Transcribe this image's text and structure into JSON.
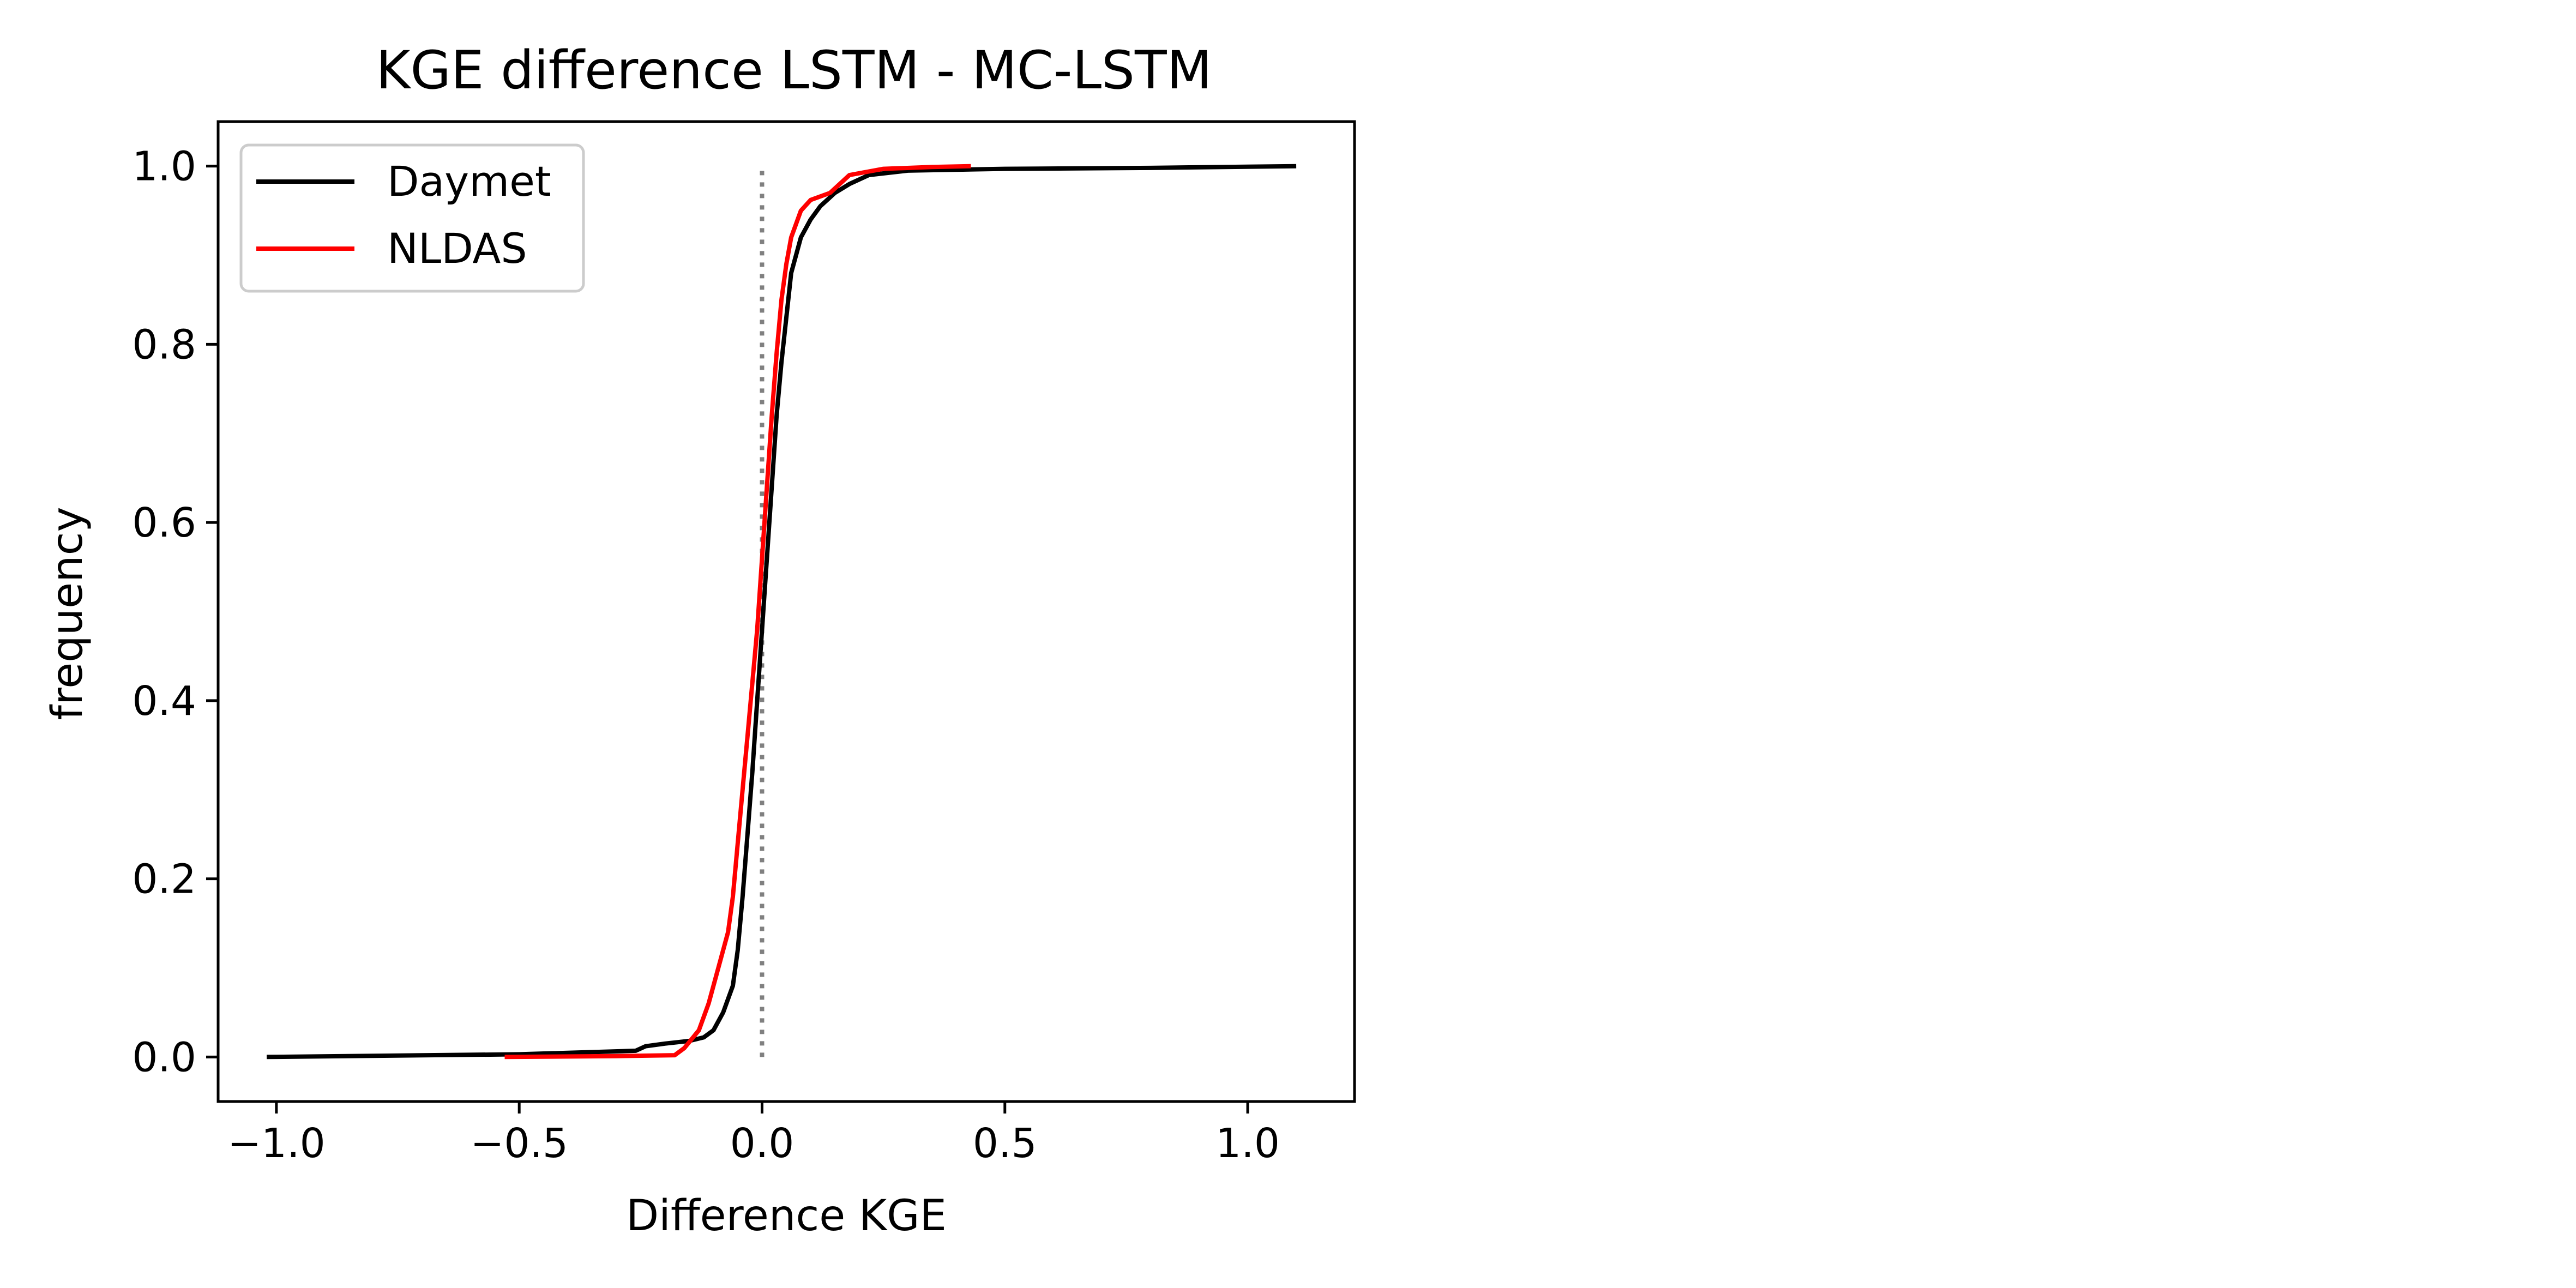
{
  "chart_data": {
    "type": "line",
    "title": "KGE difference LSTM - MC-LSTM",
    "xlabel": "Difference KGE",
    "ylabel": "frequency",
    "xlim": [
      -1.12,
      1.22
    ],
    "ylim": [
      -0.05,
      1.05
    ],
    "x_ticks": [
      -1.0,
      -0.5,
      0.0,
      0.5,
      1.0
    ],
    "x_tick_labels": [
      "−1.0",
      "−0.5",
      "0.0",
      "0.5",
      "1.0"
    ],
    "y_ticks": [
      0.0,
      0.2,
      0.4,
      0.6,
      0.8,
      1.0
    ],
    "y_tick_labels": [
      "0.0",
      "0.2",
      "0.4",
      "0.6",
      "0.8",
      "1.0"
    ],
    "grid": false,
    "legend_position": "top-left",
    "reference_line": {
      "x": 0.0,
      "y_range": [
        0.0,
        1.0
      ],
      "style": "dotted",
      "color": "#808080"
    },
    "series": [
      {
        "name": "Daymet",
        "color": "#000000",
        "points": [
          [
            -1.02,
            0.0
          ],
          [
            -0.5,
            0.003
          ],
          [
            -0.26,
            0.007
          ],
          [
            -0.24,
            0.012
          ],
          [
            -0.2,
            0.015
          ],
          [
            -0.15,
            0.018
          ],
          [
            -0.12,
            0.022
          ],
          [
            -0.1,
            0.03
          ],
          [
            -0.08,
            0.05
          ],
          [
            -0.06,
            0.08
          ],
          [
            -0.05,
            0.12
          ],
          [
            -0.04,
            0.18
          ],
          [
            -0.03,
            0.25
          ],
          [
            -0.02,
            0.32
          ],
          [
            -0.01,
            0.4
          ],
          [
            0.0,
            0.48
          ],
          [
            0.01,
            0.56
          ],
          [
            0.02,
            0.64
          ],
          [
            0.03,
            0.72
          ],
          [
            0.04,
            0.78
          ],
          [
            0.05,
            0.83
          ],
          [
            0.06,
            0.88
          ],
          [
            0.08,
            0.92
          ],
          [
            0.1,
            0.94
          ],
          [
            0.12,
            0.955
          ],
          [
            0.15,
            0.97
          ],
          [
            0.18,
            0.98
          ],
          [
            0.22,
            0.99
          ],
          [
            0.3,
            0.995
          ],
          [
            0.5,
            0.997
          ],
          [
            0.8,
            0.998
          ],
          [
            1.1,
            1.0
          ]
        ]
      },
      {
        "name": "NLDAS",
        "color": "#ff0000",
        "points": [
          [
            -0.53,
            0.0
          ],
          [
            -0.3,
            0.001
          ],
          [
            -0.18,
            0.002
          ],
          [
            -0.16,
            0.01
          ],
          [
            -0.13,
            0.03
          ],
          [
            -0.11,
            0.06
          ],
          [
            -0.09,
            0.1
          ],
          [
            -0.07,
            0.14
          ],
          [
            -0.06,
            0.18
          ],
          [
            -0.05,
            0.24
          ],
          [
            -0.04,
            0.3
          ],
          [
            -0.03,
            0.36
          ],
          [
            -0.02,
            0.42
          ],
          [
            -0.01,
            0.48
          ],
          [
            0.0,
            0.56
          ],
          [
            0.01,
            0.64
          ],
          [
            0.02,
            0.72
          ],
          [
            0.03,
            0.79
          ],
          [
            0.04,
            0.85
          ],
          [
            0.05,
            0.89
          ],
          [
            0.06,
            0.92
          ],
          [
            0.08,
            0.95
          ],
          [
            0.1,
            0.962
          ],
          [
            0.14,
            0.97
          ],
          [
            0.18,
            0.99
          ],
          [
            0.25,
            0.997
          ],
          [
            0.35,
            0.999
          ],
          [
            0.43,
            1.0
          ]
        ]
      }
    ]
  }
}
